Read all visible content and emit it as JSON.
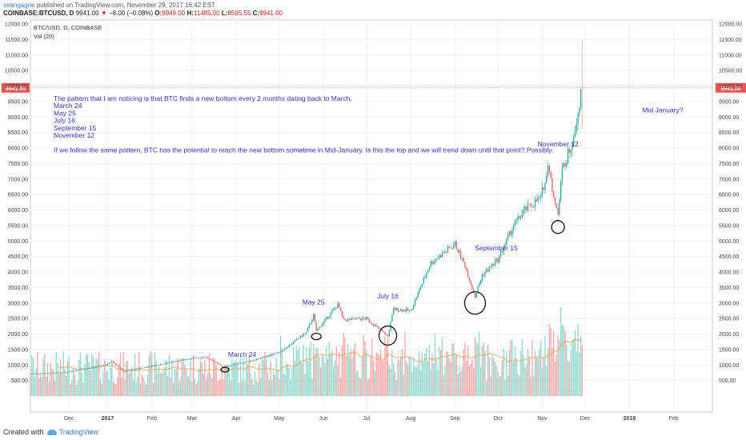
{
  "header": {
    "username": "seangagne",
    "published": " published on TradingView.com, November 29, 2017 16:42 EST",
    "symbol": "COINBASE:BTCUSD, D",
    "last": "9941.00",
    "change": "−8.00 (−0.08%)",
    "ohlc": {
      "O": "9949.00",
      "H": "11485.00",
      "L": "8595.55",
      "C": "9941.00"
    }
  },
  "legend": {
    "symbol_line": "BTC/USD, D, COINBASE",
    "vol_line": "Vol (20)"
  },
  "footer": {
    "created": "Created with",
    "brand": "TradingView"
  },
  "colors": {
    "up": "#26a69a",
    "down": "#ef5350",
    "vol_up": "#8fd5c9",
    "vol_down": "#f5a3a3",
    "ma": "#f39c4a",
    "text": "#3333cc",
    "price_line": "#ef5350"
  },
  "annotations": {
    "notes": [
      "The pattern that I am noticing is that BTC finds a new bottom every 2 months dating back to March.",
      "March 24",
      "May 25",
      "July 16",
      "September 15",
      "November 12",
      "",
      "If we follow the same pattern, BTC has the potential to reach the new bottom sometime in Mid-January.  Is this the top and we will trend down until that point?  Possibly."
    ],
    "labels": [
      {
        "text": "March 24",
        "date": "2017-03-24",
        "value": 1270
      },
      {
        "text": "May 25",
        "date": "2017-05-25",
        "value": 2950
      },
      {
        "text": "July 16",
        "date": "2017-07-16",
        "value": 3150
      },
      {
        "text": "September 15",
        "date": "2017-09-15",
        "value": 4700
      },
      {
        "text": "November 12",
        "date": "2017-11-12",
        "value": 8050
      },
      {
        "text": "Mid January?",
        "date": "2018-01-10",
        "value": 9150
      }
    ]
  },
  "chart_data": {
    "type": "candlestick",
    "x_range": [
      "2016-11-08",
      "2018-02-28"
    ],
    "y_range": [
      0,
      12000
    ],
    "x_ticks": [
      "Dec",
      "2017",
      "Feb",
      "Mar",
      "Apr",
      "May",
      "Jun",
      "Jul",
      "Aug",
      "Sep",
      "Oct",
      "Nov",
      "Dec",
      "2018",
      "Feb"
    ],
    "y_ticks": [
      "500.00",
      "1000.00",
      "1500.00",
      "2000.00",
      "2500.00",
      "3000.00",
      "3500.00",
      "4000.00",
      "4500.00",
      "5000.00",
      "5500.00",
      "6000.00",
      "6500.00",
      "7000.00",
      "7500.00",
      "8000.00",
      "8500.00",
      "9000.00",
      "9500.00",
      "10000.00",
      "10500.00",
      "11000.00",
      "11500.00",
      "12000.00"
    ],
    "last_price_label": "9941.00",
    "last_price": 9941,
    "close_anchors": [
      {
        "date": "2016-11-08",
        "value": 720
      },
      {
        "date": "2016-12-01",
        "value": 760
      },
      {
        "date": "2016-12-31",
        "value": 990
      },
      {
        "date": "2017-01-04",
        "value": 1130
      },
      {
        "date": "2017-01-12",
        "value": 790
      },
      {
        "date": "2017-02-01",
        "value": 970
      },
      {
        "date": "2017-03-01",
        "value": 1220
      },
      {
        "date": "2017-03-10",
        "value": 1250
      },
      {
        "date": "2017-03-24",
        "value": 940
      },
      {
        "date": "2017-04-15",
        "value": 1180
      },
      {
        "date": "2017-05-01",
        "value": 1400
      },
      {
        "date": "2017-05-20",
        "value": 2050
      },
      {
        "date": "2017-05-25",
        "value": 2600
      },
      {
        "date": "2017-05-27",
        "value": 2100
      },
      {
        "date": "2017-06-11",
        "value": 2950
      },
      {
        "date": "2017-06-15",
        "value": 2450
      },
      {
        "date": "2017-07-01",
        "value": 2500
      },
      {
        "date": "2017-07-16",
        "value": 1920
      },
      {
        "date": "2017-07-20",
        "value": 2800
      },
      {
        "date": "2017-08-01",
        "value": 2750
      },
      {
        "date": "2017-08-15",
        "value": 4300
      },
      {
        "date": "2017-09-01",
        "value": 4900
      },
      {
        "date": "2017-09-08",
        "value": 4200
      },
      {
        "date": "2017-09-15",
        "value": 3200
      },
      {
        "date": "2017-09-20",
        "value": 3900
      },
      {
        "date": "2017-10-01",
        "value": 4400
      },
      {
        "date": "2017-10-12",
        "value": 5500
      },
      {
        "date": "2017-10-20",
        "value": 6000
      },
      {
        "date": "2017-10-31",
        "value": 6400
      },
      {
        "date": "2017-11-05",
        "value": 7400
      },
      {
        "date": "2017-11-12",
        "value": 5850
      },
      {
        "date": "2017-11-15",
        "value": 7300
      },
      {
        "date": "2017-11-22",
        "value": 8200
      },
      {
        "date": "2017-11-29",
        "value": 9941
      }
    ],
    "volume_ma_period": 20
  }
}
